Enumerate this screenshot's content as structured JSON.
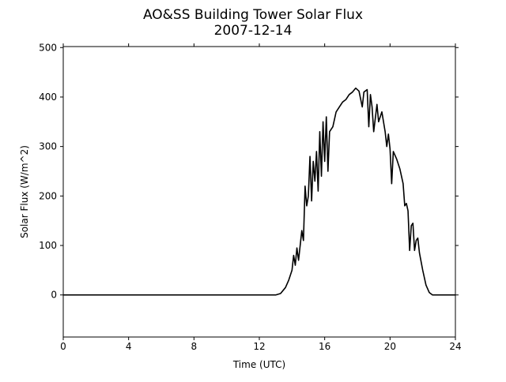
{
  "chart_data": {
    "type": "line",
    "title": "AO&SS Building Tower Solar Flux",
    "subtitle": "2007-12-14",
    "x_label": "Time (UTC)",
    "y_label": "Solar Flux (W/m^2)",
    "xlim": [
      0,
      24
    ],
    "xticks": [
      0,
      4,
      8,
      12,
      16,
      20,
      24
    ],
    "ylim": [
      -85,
      502
    ],
    "yticks": [
      0,
      100,
      200,
      300,
      400,
      500
    ],
    "grid": false,
    "series": [
      {
        "color": "#000000",
        "x": [
          0,
          12,
          13,
          13.3,
          13.6,
          13.8,
          14.0,
          14.1,
          14.2,
          14.3,
          14.4,
          14.5,
          14.6,
          14.7,
          14.8,
          14.9,
          15.0,
          15.1,
          15.2,
          15.3,
          15.4,
          15.5,
          15.6,
          15.7,
          15.8,
          15.9,
          16.0,
          16.1,
          16.2,
          16.3,
          16.5,
          16.7,
          16.9,
          17.1,
          17.3,
          17.5,
          17.7,
          17.9,
          18.1,
          18.3,
          18.4,
          18.6,
          18.7,
          18.8,
          18.9,
          19.0,
          19.2,
          19.3,
          19.5,
          19.7,
          19.8,
          19.9,
          20.0,
          20.1,
          20.2,
          20.4,
          20.6,
          20.8,
          20.9,
          21.0,
          21.1,
          21.2,
          21.3,
          21.4,
          21.5,
          21.6,
          21.7,
          21.8,
          22.0,
          22.2,
          22.4,
          22.6,
          24
        ],
        "values": [
          0,
          0,
          0,
          3,
          15,
          30,
          50,
          80,
          60,
          95,
          70,
          100,
          130,
          110,
          220,
          180,
          200,
          280,
          190,
          270,
          230,
          290,
          210,
          330,
          240,
          350,
          270,
          360,
          250,
          330,
          340,
          370,
          380,
          390,
          395,
          405,
          410,
          418,
          412,
          380,
          410,
          415,
          340,
          405,
          380,
          330,
          385,
          350,
          370,
          330,
          300,
          325,
          295,
          225,
          290,
          275,
          255,
          225,
          180,
          185,
          170,
          90,
          140,
          145,
          90,
          110,
          115,
          85,
          50,
          20,
          5,
          0,
          0
        ]
      }
    ]
  }
}
